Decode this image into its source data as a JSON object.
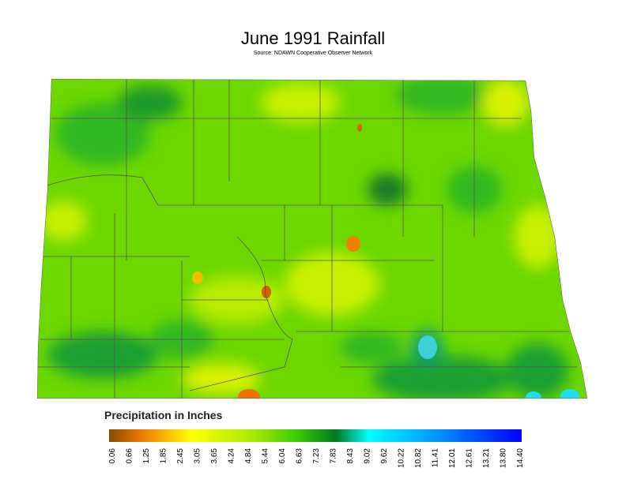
{
  "header": {
    "title": "June 1991 Rainfall",
    "source": "Source: NDAWN Cooperative Observer Network"
  },
  "legend": {
    "title": "Precipitation in Inches",
    "ticks": [
      "0.06",
      "0.66",
      "1.25",
      "1.85",
      "2.45",
      "3.05",
      "3.65",
      "4.24",
      "4.84",
      "5.44",
      "6.04",
      "6.63",
      "7.23",
      "7.83",
      "8.43",
      "9.02",
      "9.62",
      "10.22",
      "10.82",
      "11.41",
      "12.01",
      "12.61",
      "13.21",
      "13.80",
      "14.40"
    ]
  }
}
